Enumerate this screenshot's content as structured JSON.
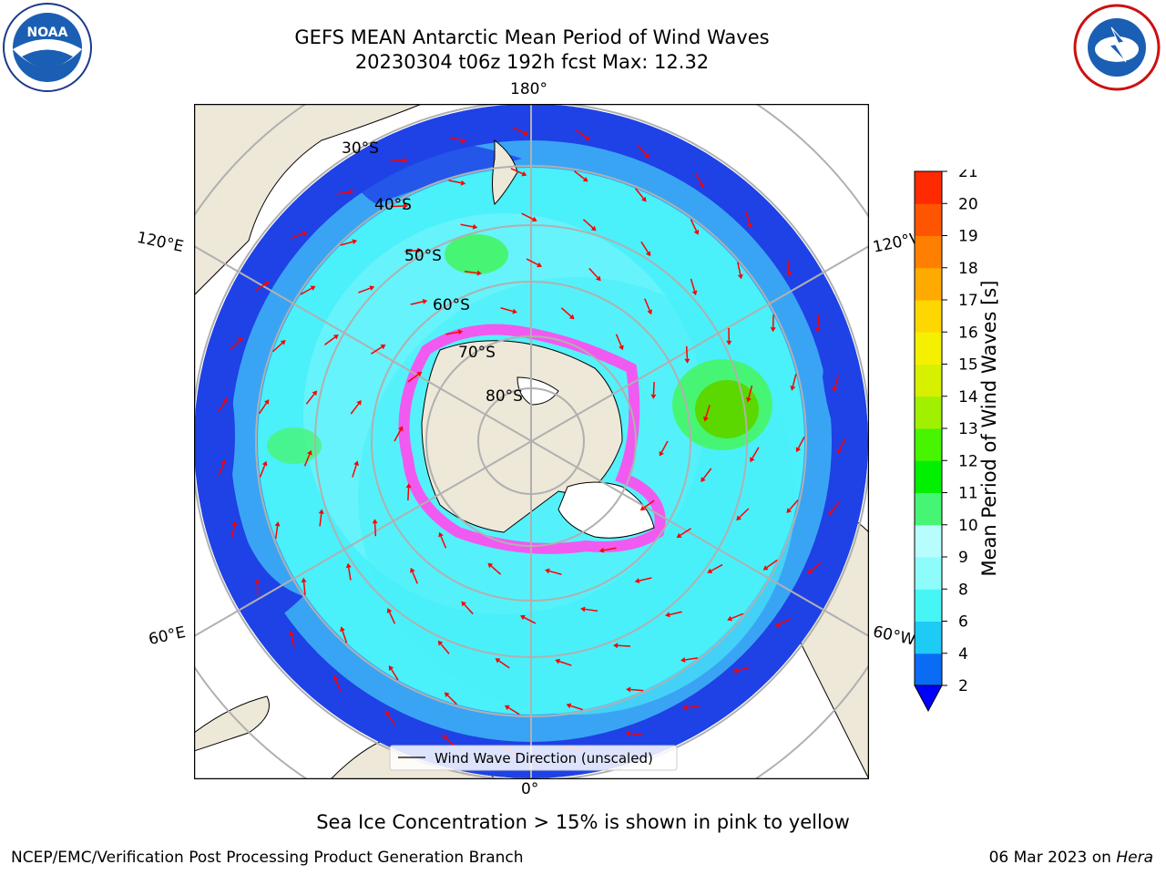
{
  "title": {
    "line1": "GEFS MEAN Antarctic Mean Period of Wind Waves",
    "line2": "20230304 t06z 192h fcst   Max: 12.32"
  },
  "logos": {
    "left": "NOAA",
    "right": "NATIONAL WEATHER SERVICE"
  },
  "map": {
    "projection": "south-polar-stereographic",
    "longitude_labels": {
      "top": "180°",
      "bottom": "0°",
      "left_upper": "120°E",
      "left_lower": "60°E",
      "right_upper": "120°W",
      "right_lower": "60°W"
    },
    "latitude_labels": [
      "30°S",
      "40°S",
      "50°S",
      "60°S",
      "70°S",
      "80°S"
    ],
    "legend": "Wind Wave Direction (unscaled)",
    "colors": {
      "land": "#ede8d8",
      "ocean_deep": "#1e42e6",
      "ocean_mid": "#3aa4f4",
      "ocean_light": "#4af0fa",
      "ice": "#f05af0",
      "arrow": "#ff0000"
    }
  },
  "colorbar": {
    "label": "Mean Period of Wind Waves [s]",
    "ticks": [
      "2",
      "4",
      "6",
      "8",
      "9",
      "10",
      "11",
      "12",
      "13",
      "14",
      "15",
      "16",
      "17",
      "18",
      "19",
      "20",
      "21"
    ],
    "colors": [
      "#0000ff",
      "#0a6cf5",
      "#1ecbf5",
      "#47f5f5",
      "#8ffcfc",
      "#b8fdfd",
      "#47f575",
      "#00f000",
      "#47f500",
      "#a0f000",
      "#d7f000",
      "#f5f000",
      "#ffd700",
      "#ffaa00",
      "#ff8000",
      "#ff5500",
      "#ff2a00",
      "#ff0000"
    ]
  },
  "caption": "Sea Ice Concentration > 15% is shown in pink to yellow",
  "footer": {
    "left": "NCEP/EMC/Verification Post Processing Product Generation Branch",
    "right_date": "06 Mar 2023 on",
    "right_host": "Hera"
  }
}
